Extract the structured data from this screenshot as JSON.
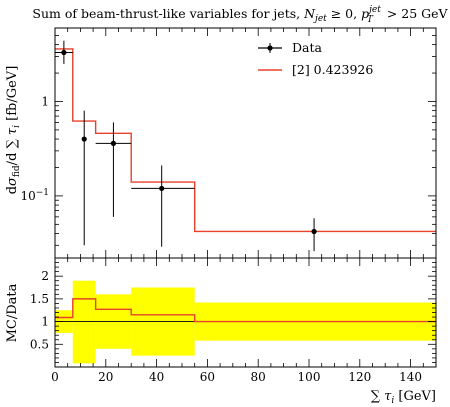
{
  "title": "Sum of beam-thrust-like variables for jets, N_jet ≥ 0, p_T^jet > 25 GeV",
  "chart_data": [
    {
      "panel": "main",
      "type": "line",
      "ylabel": "dσ_fid / d Σ τ_i [fb/GeV]",
      "xlim": [
        0,
        150
      ],
      "ylim": [
        0.022,
        6
      ],
      "yscale": "log",
      "yticks": [
        0.1,
        1
      ],
      "ytick_labels": [
        "10^-1",
        "1"
      ],
      "legend": {
        "placement": "top-right",
        "entries": [
          "Data",
          "[2] 0.423926"
        ]
      },
      "series": [
        {
          "name": "Data",
          "type": "scatter",
          "points": [
            {
              "x": 3.5,
              "y": 3.3,
              "ylo": 2.5,
              "yhi": 4.4,
              "xlo": 0,
              "xhi": 7
            },
            {
              "x": 11.5,
              "y": 0.4,
              "ylo": 0.03,
              "yhi": 0.8
            },
            {
              "x": 23,
              "y": 0.36,
              "ylo": 0.06,
              "yhi": 0.6,
              "xlo": 16,
              "xhi": 30
            },
            {
              "x": 42,
              "y": 0.12,
              "ylo": 0.029,
              "yhi": 0.21,
              "xlo": 30,
              "xhi": 55
            },
            {
              "x": 102,
              "y": 0.042,
              "ylo": 0.026,
              "yhi": 0.058
            }
          ]
        },
        {
          "name": "[2] 0.423926",
          "type": "step",
          "color": "#e8402a",
          "edges": [
            0,
            7,
            16,
            30,
            55,
            150
          ],
          "values": [
            3.6,
            0.62,
            0.46,
            0.14,
            0.042
          ]
        }
      ]
    },
    {
      "panel": "ratio",
      "type": "area",
      "ylabel": "MC/Data",
      "xlabel": "∑ τ_i [GeV]",
      "xlim": [
        0,
        150
      ],
      "ylim": [
        0,
        2.4
      ],
      "xticks": [
        0,
        20,
        40,
        60,
        80,
        100,
        120,
        140
      ],
      "yticks": [
        0.5,
        1,
        1.5,
        2
      ],
      "yticks_labels": [
        "0.5",
        "1",
        "1.5",
        "2"
      ],
      "band_color": "#ffff00",
      "band": {
        "edges": [
          0,
          7,
          16,
          30,
          55,
          150
        ],
        "lo": [
          0.75,
          0.08,
          0.4,
          0.25,
          0.58
        ],
        "hi": [
          1.25,
          1.9,
          1.6,
          1.75,
          1.42
        ]
      },
      "series": [
        {
          "name": "[2] 0.423926",
          "color": "#e8402a",
          "edges": [
            0,
            7,
            16,
            30,
            55,
            150
          ],
          "values": [
            1.09,
            1.5,
            1.27,
            1.15,
            1.0
          ]
        }
      ]
    }
  ]
}
